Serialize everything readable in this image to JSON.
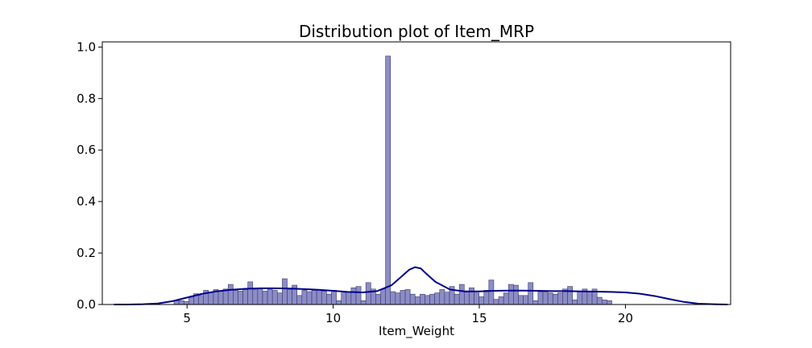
{
  "chart_data": {
    "type": "bar",
    "title": "Distribution plot of Item_MRP",
    "xlabel": "Item_Weight",
    "ylabel": "",
    "xlim": [
      2.1,
      23.6
    ],
    "ylim": [
      0,
      1.02
    ],
    "xticks": [
      5,
      10,
      15,
      20
    ],
    "xtick_labels": [
      "5",
      "10",
      "15",
      "20"
    ],
    "yticks": [
      0.0,
      0.2,
      0.4,
      0.6,
      0.8,
      1.0
    ],
    "ytick_labels": [
      "0.0",
      "0.2",
      "0.4",
      "0.6",
      "0.8",
      "1.0"
    ],
    "grid": false,
    "bar_color": "#8c8cc6",
    "bar_edge_color": "#3a3a6a",
    "kde_color": "#00008b",
    "histogram": {
      "bin_start": 4.555,
      "bin_width": 0.1683,
      "densities": [
        0.015,
        0.015,
        0.012,
        0.028,
        0.042,
        0.035,
        0.055,
        0.048,
        0.058,
        0.052,
        0.06,
        0.078,
        0.055,
        0.052,
        0.058,
        0.088,
        0.058,
        0.06,
        0.052,
        0.058,
        0.055,
        0.045,
        0.1,
        0.058,
        0.075,
        0.035,
        0.055,
        0.05,
        0.055,
        0.058,
        0.052,
        0.04,
        0.055,
        0.015,
        0.045,
        0.048,
        0.065,
        0.07,
        0.015,
        0.085,
        0.06,
        0.04,
        0.06,
        0.965,
        0.05,
        0.045,
        0.055,
        0.058,
        0.04,
        0.03,
        0.04,
        0.035,
        0.04,
        0.045,
        0.058,
        0.048,
        0.07,
        0.04,
        0.078,
        0.048,
        0.065,
        0.045,
        0.03,
        0.055,
        0.095,
        0.02,
        0.03,
        0.045,
        0.078,
        0.075,
        0.035,
        0.035,
        0.085,
        0.015,
        0.05,
        0.05,
        0.045,
        0.04,
        0.045,
        0.06,
        0.07,
        0.018,
        0.05,
        0.06,
        0.05,
        0.06,
        0.028,
        0.018,
        0.015
      ]
    },
    "kde": {
      "x": [
        2.5,
        3.0,
        3.5,
        4.0,
        4.5,
        5.0,
        5.5,
        6.0,
        6.5,
        7.0,
        7.5,
        8.0,
        8.5,
        9.0,
        9.5,
        10.0,
        10.5,
        11.0,
        11.5,
        12.0,
        12.3,
        12.6,
        12.8,
        13.0,
        13.2,
        13.5,
        14.0,
        14.5,
        15.0,
        15.5,
        16.0,
        16.5,
        17.0,
        17.5,
        18.0,
        18.5,
        19.0,
        19.5,
        20.0,
        20.5,
        21.0,
        21.5,
        22.0,
        22.5,
        23.0,
        23.5
      ],
      "y": [
        0.0,
        0.0,
        0.001,
        0.004,
        0.013,
        0.027,
        0.041,
        0.051,
        0.057,
        0.061,
        0.063,
        0.063,
        0.062,
        0.06,
        0.057,
        0.053,
        0.049,
        0.047,
        0.052,
        0.075,
        0.105,
        0.135,
        0.145,
        0.14,
        0.118,
        0.088,
        0.058,
        0.051,
        0.051,
        0.053,
        0.054,
        0.054,
        0.053,
        0.052,
        0.052,
        0.051,
        0.05,
        0.049,
        0.047,
        0.042,
        0.033,
        0.021,
        0.01,
        0.003,
        0.001,
        0.0
      ]
    }
  }
}
